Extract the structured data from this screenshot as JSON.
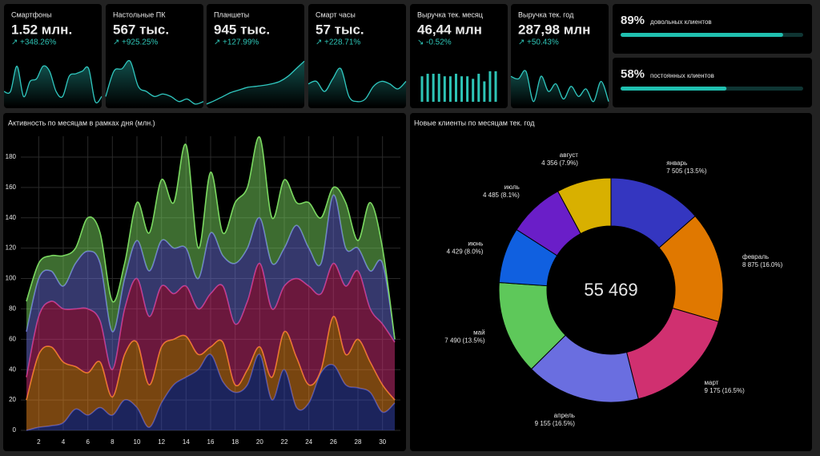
{
  "cards": [
    {
      "title": "Смартфоны",
      "value": "1.52 млн.",
      "arrow": "↗",
      "change": "+348.26%",
      "spark": {
        "type": "area",
        "ylim": [
          0,
          100
        ],
        "values": [
          30,
          30,
          80,
          20,
          50,
          55,
          80,
          70,
          30,
          20,
          60,
          65,
          70,
          75,
          10,
          20
        ]
      }
    },
    {
      "title": "Настольные ПК",
      "value": "567 тыс.",
      "arrow": "↗",
      "change": "+925.25%",
      "spark": {
        "type": "area",
        "ylim": [
          0,
          100
        ],
        "values": [
          20,
          70,
          75,
          90,
          40,
          30,
          20,
          25,
          20,
          10,
          15,
          5,
          10
        ]
      }
    },
    {
      "title": "Планшеты",
      "value": "945 тыс.",
      "arrow": "↗",
      "change": "+127.99%",
      "spark": {
        "type": "area",
        "ylim": [
          0,
          100
        ],
        "values": [
          5,
          12,
          20,
          28,
          33,
          38,
          40,
          42,
          45,
          50,
          60,
          75,
          90
        ]
      }
    },
    {
      "title": "Смарт часы",
      "value": "57 тыс.",
      "arrow": "↗",
      "change": "+228.71%",
      "spark": {
        "type": "area",
        "ylim": [
          0,
          100
        ],
        "values": [
          45,
          50,
          30,
          55,
          75,
          20,
          10,
          15,
          40,
          50,
          45,
          35,
          50
        ]
      }
    },
    {
      "title": "Выручка тек. месяц",
      "value": "46,44 млн",
      "arrow": "↘",
      "change": "-0.52%",
      "spark": {
        "type": "bar",
        "ylim": [
          0,
          100
        ],
        "values": [
          60,
          65,
          65,
          65,
          60,
          60,
          65,
          60,
          60,
          55,
          65,
          50,
          70,
          70
        ]
      }
    },
    {
      "title": "Выручка тек. год",
      "value": "287,98 млн",
      "arrow": "↗",
      "change": "+50.43%",
      "spark": {
        "type": "area",
        "ylim": [
          0,
          100
        ],
        "values": [
          60,
          55,
          70,
          10,
          60,
          30,
          45,
          15,
          40,
          20,
          35,
          10,
          50,
          10
        ]
      }
    }
  ],
  "gauges": [
    {
      "value": 89,
      "value_label": "89%",
      "label": "довольных клиентов"
    },
    {
      "value": 58,
      "value_label": "58%",
      "label": "постоянных клиентов"
    }
  ],
  "chart_data": [
    {
      "type": "area",
      "stacked": true,
      "grid": true,
      "title": "Активность по месяцам в рамках дня (млн.)",
      "x": [
        1,
        2,
        3,
        4,
        5,
        6,
        7,
        8,
        9,
        10,
        11,
        12,
        13,
        14,
        15,
        16,
        17,
        18,
        19,
        20,
        21,
        22,
        23,
        24,
        25,
        26,
        27,
        28,
        29,
        30,
        31
      ],
      "xlim": [
        1,
        31
      ],
      "xticks": [
        2,
        4,
        6,
        8,
        10,
        12,
        14,
        16,
        18,
        20,
        22,
        24,
        26,
        28,
        30
      ],
      "ylim": [
        0,
        190
      ],
      "yticks": [
        0,
        20,
        40,
        60,
        80,
        100,
        120,
        140,
        160,
        180
      ],
      "series": [
        {
          "color": "#3848b8",
          "values": [
            0,
            2,
            3,
            5,
            14,
            10,
            15,
            10,
            20,
            15,
            2,
            18,
            30,
            35,
            40,
            50,
            32,
            25,
            30,
            50,
            20,
            40,
            15,
            18,
            38,
            43,
            30,
            28,
            25,
            12,
            18
          ]
        },
        {
          "color": "#f08a20",
          "values": [
            20,
            48,
            52,
            40,
            28,
            28,
            30,
            12,
            30,
            43,
            28,
            37,
            30,
            27,
            10,
            5,
            26,
            5,
            10,
            5,
            15,
            25,
            33,
            12,
            2,
            32,
            20,
            32,
            20,
            18,
            2
          ]
        },
        {
          "color": "#d6307a",
          "values": [
            15,
            25,
            30,
            35,
            38,
            42,
            27,
            18,
            30,
            42,
            45,
            40,
            30,
            33,
            30,
            35,
            37,
            40,
            45,
            55,
            45,
            30,
            52,
            65,
            50,
            35,
            45,
            45,
            35,
            40,
            38
          ]
        },
        {
          "color": "#6a70d8",
          "values": [
            30,
            25,
            20,
            15,
            30,
            38,
            38,
            25,
            20,
            25,
            30,
            30,
            30,
            25,
            20,
            40,
            20,
            40,
            35,
            30,
            30,
            25,
            35,
            25,
            20,
            45,
            25,
            15,
            25,
            40,
            2
          ]
        },
        {
          "color": "#7ad860",
          "values": [
            20,
            10,
            10,
            20,
            10,
            22,
            20,
            20,
            10,
            25,
            25,
            40,
            30,
            68,
            20,
            40,
            15,
            40,
            40,
            53,
            30,
            45,
            15,
            30,
            30,
            5,
            30,
            5,
            45,
            10,
            0
          ]
        }
      ]
    },
    {
      "type": "donut",
      "title": "Новые клиенты по месяцам тек. год",
      "center_text": "55 469",
      "categories": [
        "январь",
        "февраль",
        "март",
        "апрель",
        "май",
        "июнь",
        "июль",
        "август"
      ],
      "values": [
        7505,
        8875,
        9175,
        9155,
        7490,
        4429,
        4485,
        4356
      ],
      "value_labels": [
        "7 505 (13.5%)",
        "8 875 (16.0%)",
        "9 175 (16.5%)",
        "9 155 (16.5%)",
        "7 490 (13.5%)",
        "4 429 (8.0%)",
        "4 485 (8.1%)",
        "4 356 (7.9%)"
      ],
      "colors": [
        "#3436c0",
        "#e07800",
        "#d03070",
        "#6a6ee0",
        "#5ec85a",
        "#1060e0",
        "#6a1ec8",
        "#d8b000"
      ]
    }
  ]
}
